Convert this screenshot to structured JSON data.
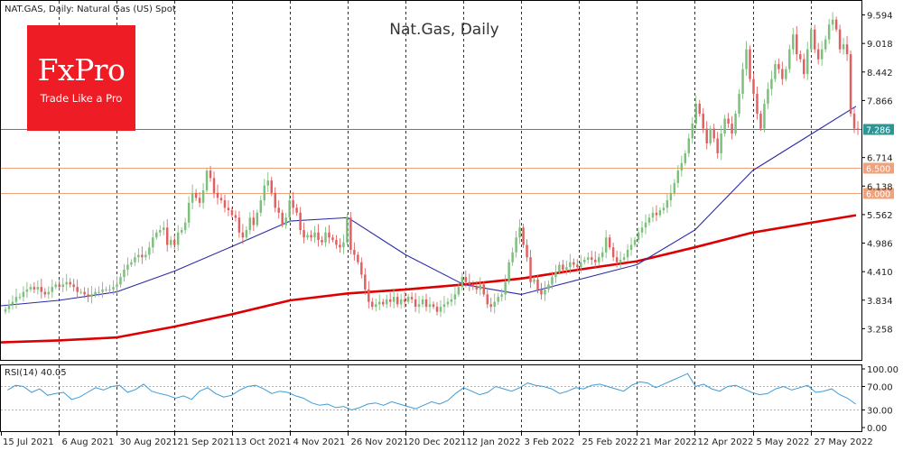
{
  "header": {
    "symbol_label": "NAT.GAS, Daily:  Natural Gas (US) Spot",
    "chart_title": "Nat.Gas, Daily"
  },
  "logo": {
    "main": "FxPro",
    "tagline": "Trade Like a Pro"
  },
  "rsi": {
    "label": "RSI(14) 40.05",
    "ticks": [
      "100.00",
      "70.00",
      "30.00",
      "0.00"
    ]
  },
  "colors": {
    "bull": "#7cc07c",
    "bear": "#e06060",
    "sma_fast": "#2a2aa8",
    "sma_slow": "#dd0000",
    "rsi_line": "#3f9bd6",
    "price_level": "#2e9494",
    "support_level": "#f0a27c",
    "logo_bg": "#ee1c25",
    "grid": "#000000"
  },
  "chart_data": {
    "type": "candlestick",
    "title": "Nat.Gas, Daily",
    "y_ticks": [
      "9.594",
      "9.018",
      "8.442",
      "7.866",
      "7.290",
      "6.714",
      "6.138",
      "5.562",
      "4.986",
      "4.410",
      "3.834",
      "3.258"
    ],
    "ylim": [
      2.7,
      9.75
    ],
    "x_ticks": [
      "15 Jul 2021",
      "6 Aug 2021",
      "30 Aug 2021",
      "21 Sep 2021",
      "13 Oct 2021",
      "4 Nov 2021",
      "26 Nov 2021",
      "20 Dec 2021",
      "12 Jan 2022",
      "3 Feb 2022",
      "25 Feb 2022",
      "21 Mar 2022",
      "12 Apr 2022",
      "5 May 2022",
      "27 May 2022"
    ],
    "levels": [
      {
        "label": "7.286",
        "value": 7.286,
        "kind": "price"
      },
      {
        "label": "6.500",
        "value": 6.5,
        "kind": "support"
      },
      {
        "label": "6.000",
        "value": 6.0,
        "kind": "support"
      }
    ],
    "closes": [
      3.65,
      3.75,
      3.8,
      3.9,
      3.9,
      4.0,
      4.05,
      4.1,
      4.05,
      4.1,
      4.0,
      3.95,
      4.0,
      4.1,
      4.15,
      4.1,
      4.15,
      4.2,
      4.15,
      4.1,
      4.0,
      4.0,
      3.95,
      3.9,
      3.95,
      4.0,
      4.0,
      4.05,
      4.05,
      4.05,
      4.1,
      4.15,
      4.3,
      4.45,
      4.55,
      4.6,
      4.7,
      4.75,
      4.7,
      4.75,
      4.9,
      5.1,
      5.2,
      5.25,
      5.3,
      4.95,
      5.05,
      4.95,
      5.2,
      5.25,
      5.4,
      5.8,
      6.0,
      5.9,
      5.8,
      6.05,
      6.45,
      6.3,
      6.0,
      5.9,
      5.85,
      5.7,
      5.65,
      5.55,
      5.5,
      5.2,
      5.1,
      5.25,
      5.5,
      5.35,
      5.6,
      5.85,
      6.15,
      6.25,
      6.0,
      5.7,
      5.6,
      5.35,
      5.5,
      5.85,
      5.7,
      5.6,
      5.25,
      5.1,
      5.15,
      5.1,
      5.2,
      5.05,
      5.0,
      5.2,
      5.1,
      5.05,
      4.95,
      4.9,
      5.0,
      5.5,
      4.85,
      4.75,
      4.6,
      4.35,
      4.05,
      3.8,
      3.7,
      3.75,
      3.8,
      3.75,
      3.85,
      3.8,
      3.9,
      3.75,
      3.85,
      3.8,
      3.9,
      3.85,
      3.7,
      3.75,
      3.85,
      3.7,
      3.75,
      3.7,
      3.6,
      3.7,
      3.75,
      3.8,
      3.85,
      3.95,
      4.1,
      4.3,
      4.2,
      4.15,
      4.1,
      4.05,
      4.15,
      3.95,
      3.75,
      3.7,
      3.8,
      3.9,
      3.95,
      4.2,
      4.6,
      4.8,
      5.1,
      5.3,
      4.95,
      4.7,
      4.2,
      4.25,
      4.05,
      3.95,
      4.05,
      4.15,
      4.3,
      4.4,
      4.55,
      4.45,
      4.5,
      4.6,
      4.55,
      4.5,
      4.6,
      4.65,
      4.7,
      4.65,
      4.6,
      4.7,
      4.8,
      5.1,
      4.9,
      4.7,
      4.6,
      4.65,
      4.7,
      4.85,
      4.95,
      5.05,
      5.2,
      5.3,
      5.4,
      5.5,
      5.6,
      5.55,
      5.65,
      5.7,
      5.85,
      6.0,
      6.2,
      6.45,
      6.6,
      6.8,
      7.1,
      7.4,
      7.8,
      7.6,
      7.3,
      7.0,
      7.3,
      7.1,
      6.8,
      7.2,
      7.5,
      7.4,
      7.2,
      7.6,
      8.0,
      8.5,
      8.9,
      8.3,
      8.0,
      7.6,
      7.3,
      7.8,
      8.1,
      8.3,
      8.6,
      8.5,
      8.3,
      8.5,
      8.9,
      9.2,
      8.8,
      8.7,
      8.4,
      8.9,
      9.3,
      8.9,
      8.7,
      8.9,
      9.1,
      9.4,
      9.5,
      9.3,
      8.9,
      9.0,
      8.8,
      7.6,
      7.3,
      7.29
    ],
    "sma_50_approx": [
      {
        "x": "15 Jul 2021",
        "y": 3.72
      },
      {
        "x": "6 Aug 2021",
        "y": 3.83
      },
      {
        "x": "30 Aug 2021",
        "y": 4.0
      },
      {
        "x": "21 Sep 2021",
        "y": 4.42
      },
      {
        "x": "13 Oct 2021",
        "y": 4.92
      },
      {
        "x": "4 Nov 2021",
        "y": 5.43
      },
      {
        "x": "26 Nov 2021",
        "y": 5.5
      },
      {
        "x": "20 Dec 2021",
        "y": 4.75
      },
      {
        "x": "12 Jan 2022",
        "y": 4.15
      },
      {
        "x": "3 Feb 2022",
        "y": 3.95
      },
      {
        "x": "25 Feb 2022",
        "y": 4.25
      },
      {
        "x": "21 Mar 2022",
        "y": 4.55
      },
      {
        "x": "12 Apr 2022",
        "y": 5.25
      },
      {
        "x": "5 May 2022",
        "y": 6.45
      },
      {
        "x": "27 May 2022",
        "y": 7.75
      }
    ],
    "sma_200_approx": [
      {
        "x": "15 Jul 2021",
        "y": 2.98
      },
      {
        "x": "6 Aug 2021",
        "y": 3.02
      },
      {
        "x": "30 Aug 2021",
        "y": 3.08
      },
      {
        "x": "21 Sep 2021",
        "y": 3.3
      },
      {
        "x": "13 Oct 2021",
        "y": 3.55
      },
      {
        "x": "4 Nov 2021",
        "y": 3.83
      },
      {
        "x": "26 Nov 2021",
        "y": 3.97
      },
      {
        "x": "20 Dec 2021",
        "y": 4.05
      },
      {
        "x": "12 Jan 2022",
        "y": 4.15
      },
      {
        "x": "3 Feb 2022",
        "y": 4.27
      },
      {
        "x": "25 Feb 2022",
        "y": 4.45
      },
      {
        "x": "21 Mar 2022",
        "y": 4.62
      },
      {
        "x": "12 Apr 2022",
        "y": 4.9
      },
      {
        "x": "5 May 2022",
        "y": 5.2
      },
      {
        "x": "27 May 2022",
        "y": 5.55
      }
    ],
    "rsi_values": [
      64,
      72,
      70,
      60,
      66,
      55,
      58,
      60,
      48,
      52,
      60,
      68,
      64,
      70,
      72,
      60,
      65,
      74,
      62,
      58,
      55,
      50,
      54,
      48,
      62,
      68,
      58,
      52,
      55,
      64,
      70,
      72,
      66,
      58,
      62,
      60,
      54,
      50,
      42,
      38,
      40,
      34,
      36,
      30,
      34,
      40,
      42,
      38,
      44,
      40,
      36,
      32,
      38,
      44,
      40,
      46,
      58,
      68,
      62,
      56,
      60,
      70,
      66,
      62,
      68,
      76,
      72,
      70,
      66,
      58,
      62,
      68,
      66,
      72,
      74,
      70,
      66,
      62,
      72,
      78,
      76,
      68,
      74,
      80,
      86,
      92,
      70,
      74,
      66,
      62,
      70,
      72,
      66,
      60,
      56,
      58,
      66,
      70,
      64,
      68,
      72,
      60,
      62,
      66,
      56,
      50,
      40
    ]
  }
}
